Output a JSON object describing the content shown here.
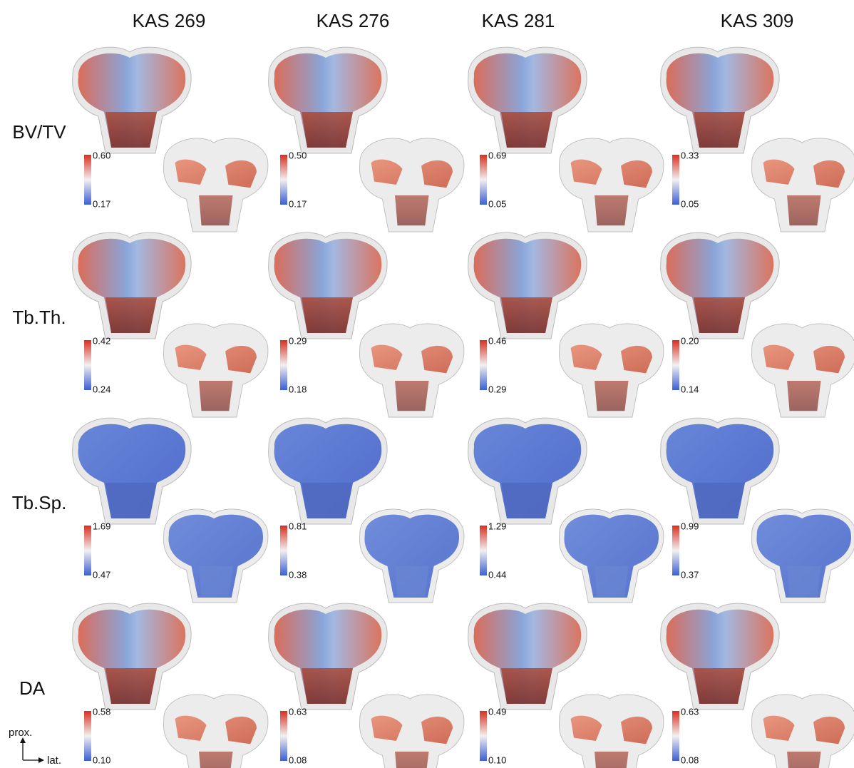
{
  "columns": [
    "KAS 269",
    "KAS 276",
    "KAS 281",
    "KAS 309"
  ],
  "rows": [
    {
      "label": "BV/TV",
      "scales": [
        {
          "max": "0.60",
          "min": "0.17"
        },
        {
          "max": "0.50",
          "min": "0.17"
        },
        {
          "max": "0.69",
          "min": "0.05"
        },
        {
          "max": "0.33",
          "min": "0.05"
        }
      ]
    },
    {
      "label": "Tb.Th.",
      "scales": [
        {
          "max": "0.42",
          "min": "0.24"
        },
        {
          "max": "0.29",
          "min": "0.18"
        },
        {
          "max": "0.46",
          "min": "0.29"
        },
        {
          "max": "0.20",
          "min": "0.14"
        }
      ]
    },
    {
      "label": "Tb.Sp.",
      "scales": [
        {
          "max": "1.69",
          "min": "0.47"
        },
        {
          "max": "0.81",
          "min": "0.38"
        },
        {
          "max": "1.29",
          "min": "0.44"
        },
        {
          "max": "0.99",
          "min": "0.37"
        }
      ]
    },
    {
      "label": "DA",
      "scales": [
        {
          "max": "0.58",
          "min": "0.10"
        },
        {
          "max": "0.63",
          "min": "0.08"
        },
        {
          "max": "0.49",
          "min": "0.10"
        },
        {
          "max": "0.63",
          "min": "0.08"
        }
      ]
    }
  ],
  "axes": {
    "proximal": "prox.",
    "lateral": "lat."
  }
}
